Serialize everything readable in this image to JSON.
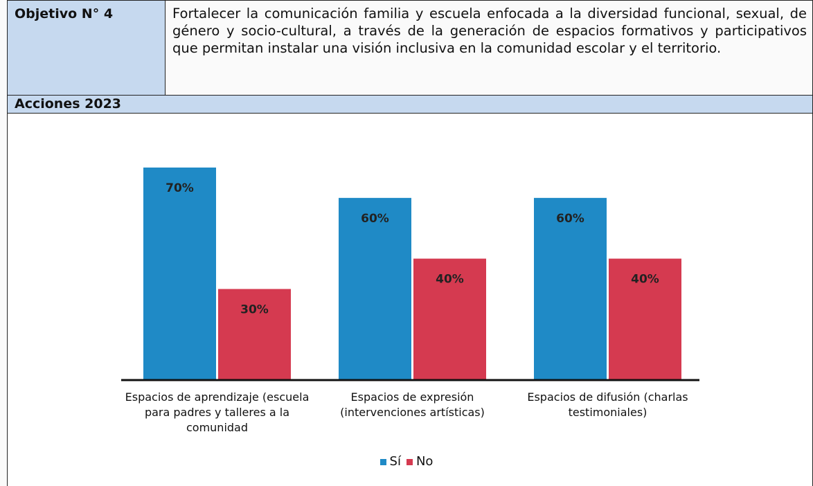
{
  "header": {
    "label": "Objetivo N° 4",
    "text": "Fortalecer la comunicación familia y escuela enfocada a la diversidad funcional, sexual, de género y socio-cultural, a través de la generación de espacios formativos y participativos que permitan instalar una visión inclusiva en la comunidad escolar y el territorio."
  },
  "section": {
    "label": "Acciones 2023"
  },
  "chart_data": {
    "type": "bar",
    "categories": [
      "Espacios de aprendizaje (escuela para padres y talleres a la comunidad",
      "Espacios de expresión (intervenciones artísticas)",
      "Espacios de difusión (charlas testimoniales)"
    ],
    "series": [
      {
        "name": "Sí",
        "color": "#1f8ac6",
        "values": [
          70,
          60,
          60
        ],
        "value_labels": [
          "70%",
          "60%",
          "60%"
        ]
      },
      {
        "name": "No",
        "color": "#d53a50",
        "values": [
          30,
          40,
          40
        ],
        "value_labels": [
          "30%",
          "40%",
          "40%"
        ]
      }
    ],
    "legend": "bottom"
  }
}
